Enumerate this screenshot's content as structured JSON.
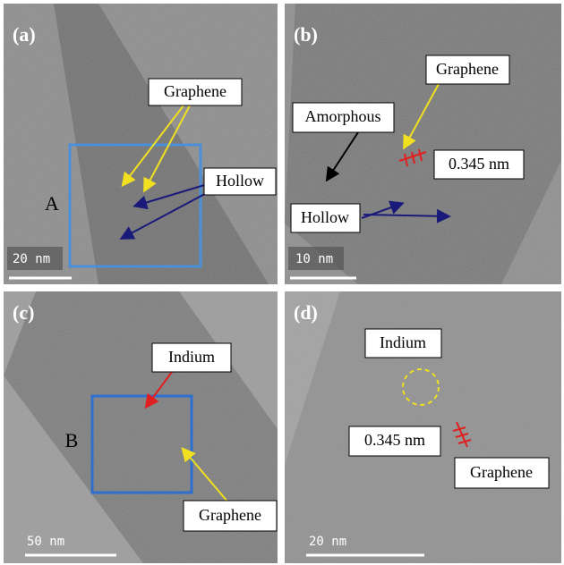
{
  "panels": [
    {
      "label": "(a)",
      "region": "A",
      "scale_bar": "20 nm",
      "annotations": [
        "Graphene",
        "Hollow"
      ]
    },
    {
      "label": "(b)",
      "scale_bar": "10 nm",
      "annotations": [
        "Graphene",
        "Amorphous",
        "0.345 nm",
        "Hollow"
      ]
    },
    {
      "label": "(c)",
      "region": "B",
      "scale_bar": "50 nm",
      "annotations": [
        "Indium",
        "Graphene"
      ]
    },
    {
      "label": "(d)",
      "scale_bar": "20 nm",
      "annotations": [
        "Indium",
        "0.345 nm",
        "Graphene"
      ]
    }
  ]
}
